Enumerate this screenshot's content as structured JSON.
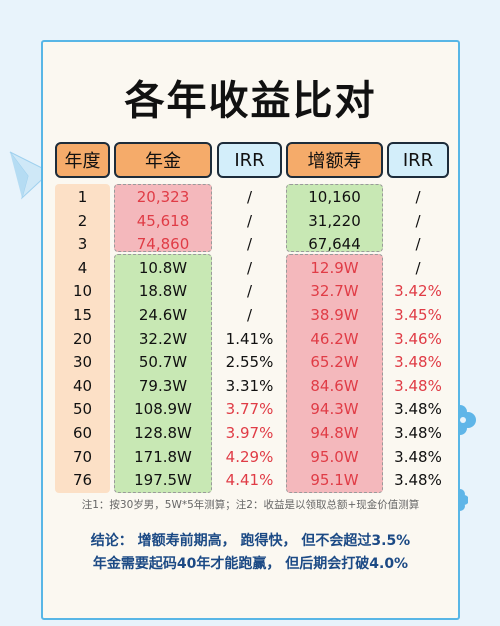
{
  "title": "各年收益比对",
  "headers": {
    "year": "年度",
    "annuity": "年金",
    "irr1": "IRR",
    "wl": "增额寿",
    "irr2": "IRR"
  },
  "rows": [
    {
      "year": "1",
      "annuity": "20,323",
      "irr1": "/",
      "wl": "10,160",
      "irr2": "/"
    },
    {
      "year": "2",
      "annuity": "45,618",
      "irr1": "/",
      "wl": "31,220",
      "irr2": "/"
    },
    {
      "year": "3",
      "annuity": "74,860",
      "irr1": "/",
      "wl": "67,644",
      "irr2": "/"
    },
    {
      "year": "4",
      "annuity": "10.8W",
      "irr1": "/",
      "wl": "12.9W",
      "irr2": "/"
    },
    {
      "year": "10",
      "annuity": "18.8W",
      "irr1": "/",
      "wl": "32.7W",
      "irr2": "3.42%"
    },
    {
      "year": "15",
      "annuity": "24.6W",
      "irr1": "/",
      "wl": "38.9W",
      "irr2": "3.45%"
    },
    {
      "year": "20",
      "annuity": "32.2W",
      "irr1": "1.41%",
      "wl": "46.2W",
      "irr2": "3.46%"
    },
    {
      "year": "30",
      "annuity": "50.7W",
      "irr1": "2.55%",
      "wl": "65.2W",
      "irr2": "3.48%"
    },
    {
      "year": "40",
      "annuity": "79.3W",
      "irr1": "3.31%",
      "wl": "84.6W",
      "irr2": "3.48%"
    },
    {
      "year": "50",
      "annuity": "108.9W",
      "irr1": "3.77%",
      "wl": "94.3W",
      "irr2": "3.48%"
    },
    {
      "year": "60",
      "annuity": "128.8W",
      "irr1": "3.97%",
      "wl": "94.8W",
      "irr2": "3.48%"
    },
    {
      "year": "70",
      "annuity": "171.8W",
      "irr1": "4.29%",
      "wl": "95.0W",
      "irr2": "3.48%"
    },
    {
      "year": "76",
      "annuity": "197.5W",
      "irr1": "4.41%",
      "wl": "95.1W",
      "irr2": "3.48%"
    }
  ],
  "footnote": "注1：按30岁男，5W*5年测算；注2：收益是以领取总额+现金价值测算",
  "conclusion_line1": "结论：  增额寿前期高，  跑得快，  但不会超过3.5%",
  "conclusion_line2": "年金需要起码40年才能跑赢，  但后期会打破4.0%",
  "colors": {
    "accent_blue": "#58b6e6",
    "header_orange": "#f5ab6a",
    "header_blue": "#d3eefa",
    "pink": "#f4b8bc",
    "green": "#c8e8b4",
    "red_text": "#e03c46",
    "navy": "#1c4a85"
  },
  "icons": [
    "paper-plane-icon",
    "flower-icon"
  ]
}
